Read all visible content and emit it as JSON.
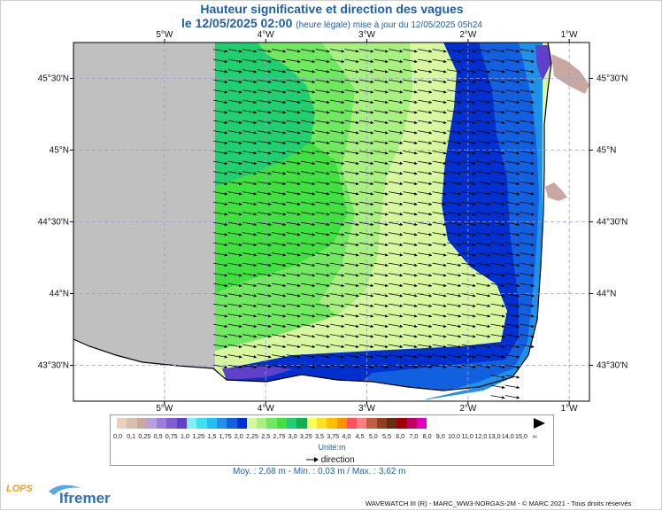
{
  "title": "Hauteur significative et direction des vagues",
  "subtitle_main": "le 12/05/2025 02:00",
  "subtitle_note": "(heure légale) mise à jour du 12/05/2025 05h24",
  "longitude_labels": [
    "5°W",
    "4°W",
    "3°W",
    "2°W",
    "1°W"
  ],
  "latitude_labels": [
    "45°30'N",
    "45°N",
    "44°30'N",
    "44°N",
    "43°30'N"
  ],
  "legend": {
    "values": [
      "0,0",
      "0,1",
      "0,25",
      "0,5",
      "0,75",
      "1,0",
      "1,25",
      "1,5",
      "1,75",
      "2,0",
      "2,25",
      "2,5",
      "2,75",
      "3,0",
      "3,25",
      "3,5",
      "3,75",
      "4,0",
      "4,5",
      "5,0",
      "5,5",
      "6,0",
      "7,0",
      "8,0",
      "9,0",
      "10,0",
      "11,0",
      "12,0",
      "13,0",
      "14,0",
      "15,0",
      "∞"
    ],
    "colors": [
      "#e8d0c0",
      "#d8c0b0",
      "#c8a8a0",
      "#b8a0e0",
      "#9b7fd8",
      "#7f5fd0",
      "#6040c8",
      "#80f0f8",
      "#40e0f0",
      "#20c0f0",
      "#2090e8",
      "#1060e0",
      "#0030d0",
      "#d8f8a0",
      "#a8f080",
      "#70e860",
      "#40e040",
      "#20d070",
      "#10b050",
      "#ffff60",
      "#ffe020",
      "#ffc000",
      "#ff9000",
      "#ff5060",
      "#ff8080",
      "#c06040",
      "#904020",
      "#603010",
      "#a00000",
      "#c00060",
      "#e000c0"
    ],
    "unit": "Unité:m",
    "direction_label": "direction"
  },
  "stats": "Moy. : 2,68 m   -   Min. : 0,03 m / Max. : 3,62 m",
  "footer": "WAVEWATCH III (R) - MARC_WW3-NORGAS-2M - © MARC 2021 - Tous droits réservés",
  "logos": {
    "lops": "LOPS",
    "ifremer": "Ifremer"
  },
  "map": {
    "lon_range": [
      -5.9,
      -0.8
    ],
    "lat_range": [
      43.25,
      45.75
    ],
    "wave_direction_deg": 100,
    "zone_colors": {
      "no_data": "#c0c0c0",
      "mid_green": "#70e860",
      "green": "#40e040",
      "teal": "#20d070",
      "light_green": "#a8f080",
      "pale_yellow": "#d8f8a0",
      "dark_blue": "#0030d0",
      "blue": "#1060e0",
      "light_blue": "#2090e8",
      "sky_blue": "#20c0f0",
      "violet": "#6040c8",
      "land": "#ffffff",
      "shore": "#c8a8a0"
    }
  }
}
